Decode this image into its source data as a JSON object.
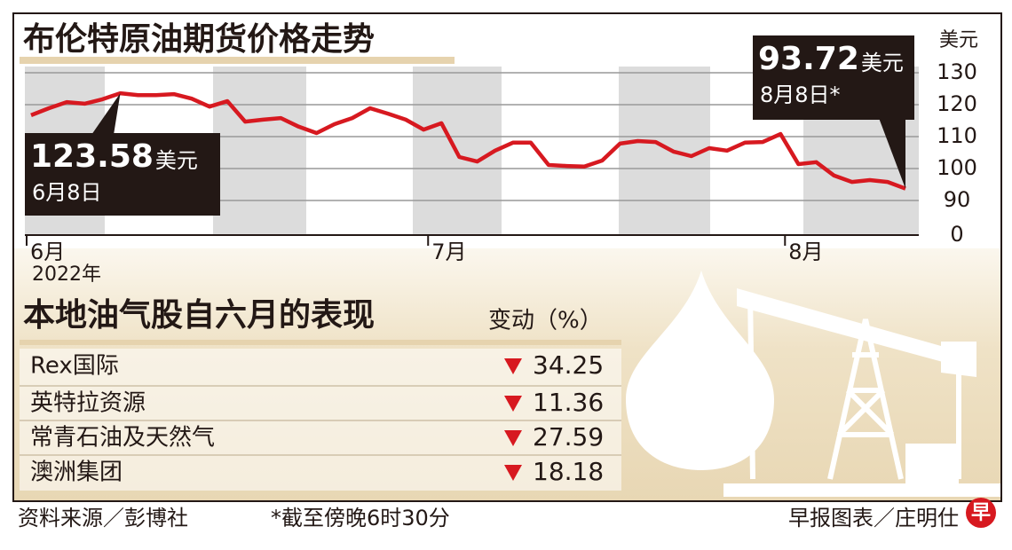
{
  "chart_data": {
    "type": "line",
    "title": "布伦特原油期货价格走势",
    "y_label": "美元",
    "x_sublabel": "2022年",
    "categories": [
      "6月",
      null,
      null,
      null,
      null,
      null,
      null,
      null,
      null,
      null,
      null,
      null,
      null,
      null,
      null,
      null,
      null,
      null,
      null,
      null,
      null,
      null,
      "7月",
      null,
      null,
      null,
      null,
      null,
      null,
      null,
      null,
      null,
      null,
      null,
      null,
      null,
      null,
      null,
      null,
      null,
      null,
      null,
      "8月",
      null,
      null,
      null,
      null,
      null,
      null,
      null
    ],
    "series": [
      {
        "name": "布伦特原油期货",
        "color": "#d71920",
        "values": [
          116.7,
          118.9,
          120.8,
          120.3,
          121.7,
          123.58,
          123.0,
          123.0,
          123.3,
          121.9,
          119.4,
          121.1,
          114.7,
          115.3,
          115.8,
          113.1,
          111.1,
          113.9,
          115.8,
          118.9,
          117.2,
          115.3,
          112.2,
          114.2,
          103.6,
          102.2,
          105.6,
          108.1,
          108.1,
          101.1,
          100.8,
          100.6,
          102.5,
          107.8,
          108.6,
          108.3,
          105.3,
          103.9,
          106.4,
          105.6,
          108.1,
          108.3,
          110.8,
          101.4,
          102.0,
          97.8,
          95.8,
          96.4,
          95.8,
          93.72
        ]
      }
    ],
    "ylim": [
      0,
      130
    ],
    "axis_break": [
      0,
      90
    ],
    "yticks": [
      0,
      90,
      100,
      110,
      120,
      130
    ],
    "grid": true,
    "annotations": [
      {
        "index": 5,
        "unit": "美元",
        "date": "6月8日"
      },
      {
        "index": 49,
        "unit": "美元",
        "date": "8月8日*"
      }
    ]
  },
  "table": {
    "title": "本地油气股自六月的表现",
    "header": "变动（%）",
    "rows": [
      [
        "Rex国际",
        34.25
      ],
      [
        "英特拉资源",
        11.36
      ],
      [
        "常青石油及天然气",
        27.59
      ],
      [
        "澳洲集团",
        18.18
      ]
    ]
  },
  "footer": {
    "source": "资料来源／彭博社",
    "note": "*截至傍晚6时30分",
    "credit": "早报图表／庄明仕",
    "logo": "早"
  }
}
